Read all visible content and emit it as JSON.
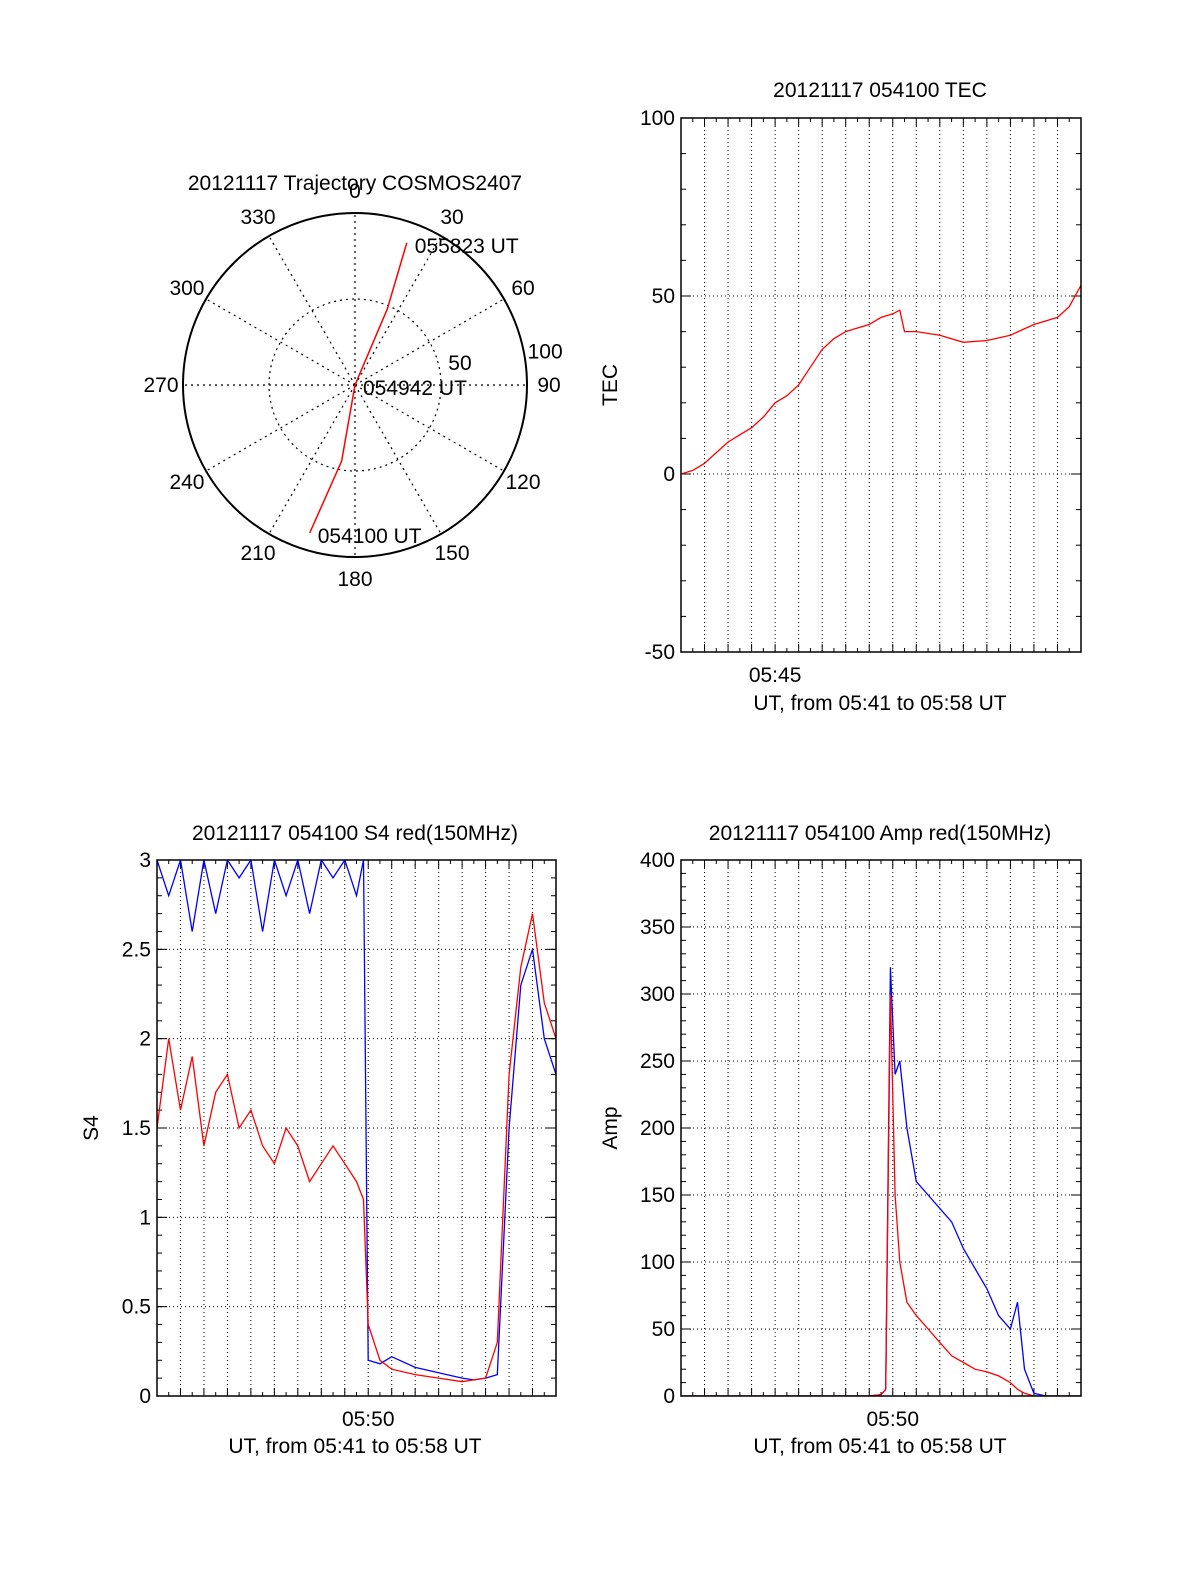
{
  "colors": {
    "red": "#ff0000",
    "blue": "#0000ff",
    "axis": "#000000",
    "grid": "#000000"
  },
  "chart_data": [
    {
      "id": "trajectory",
      "type": "polar",
      "title": "20121117 Trajectory COSMOS2407",
      "angle_labels": [
        "0",
        "30",
        "60",
        "90",
        "120",
        "150",
        "180",
        "210",
        "240",
        "270",
        "300",
        "330"
      ],
      "radial_labels": [
        "50",
        "100"
      ],
      "radial_ticks": [
        50,
        100
      ],
      "r_max": 100,
      "grid": true,
      "series": [
        {
          "color": "red",
          "points": [
            {
              "az": 197,
              "r": 90
            },
            {
              "az": 190,
              "r": 45
            },
            {
              "az": 0,
              "r": 0
            },
            {
              "az": 23,
              "r": 48
            },
            {
              "az": 20,
              "r": 88
            }
          ]
        }
      ],
      "annotations": [
        {
          "text": "055823 UT",
          "az": 20,
          "r": 88
        },
        {
          "text": "054942 UT",
          "az": 0,
          "r": 0
        },
        {
          "text": "054100 UT",
          "az": 197,
          "r": 90
        }
      ]
    },
    {
      "id": "tec",
      "type": "line",
      "title": "20121117 054100 TEC",
      "xlabel": "UT, from 05:41 to 05:58 UT",
      "ylabel": "TEC",
      "xlim": [
        0,
        17
      ],
      "ylim": [
        -50,
        100
      ],
      "yticks": [
        -50,
        0,
        50,
        100
      ],
      "xtick_labels": [
        {
          "value": 4,
          "label": "05:45"
        }
      ],
      "grid": true,
      "series": [
        {
          "color": "red",
          "x": [
            0,
            0.5,
            1,
            1.5,
            2,
            2.5,
            3,
            3.5,
            4,
            4.5,
            5,
            5.5,
            6,
            6.5,
            7,
            7.5,
            8,
            8.5,
            9,
            9.3,
            9.5,
            10,
            11,
            12,
            13,
            14,
            15,
            16,
            16.5,
            17
          ],
          "y": [
            0,
            1,
            3,
            6,
            9,
            11,
            13,
            16,
            20,
            22,
            25,
            30,
            35,
            38,
            40,
            41,
            42,
            44,
            45,
            46,
            40,
            40,
            39,
            37,
            37.5,
            39,
            42,
            44,
            47,
            53
          ]
        }
      ]
    },
    {
      "id": "s4",
      "type": "line",
      "title": "20121117 054100 S4 red(150MHz)",
      "xlabel": "UT, from 05:41 to 05:58 UT",
      "ylabel": "S4",
      "xlim": [
        0,
        17
      ],
      "ylim": [
        0,
        3
      ],
      "yticks": [
        0,
        0.5,
        1,
        1.5,
        2,
        2.5,
        3
      ],
      "ytick_labels": [
        "0",
        "0.5",
        "1",
        "1.5",
        "2",
        "2.5",
        "3"
      ],
      "xtick_labels": [
        {
          "value": 9,
          "label": "05:50"
        }
      ],
      "grid": true,
      "series": [
        {
          "color": "blue",
          "x": [
            0,
            0.5,
            1,
            1.5,
            2,
            2.5,
            3,
            3.5,
            4,
            4.5,
            5,
            5.5,
            6,
            6.5,
            7,
            7.5,
            8,
            8.5,
            8.8,
            9,
            9.5,
            10,
            11,
            12,
            13,
            13.5,
            14,
            14.5,
            15,
            15.5,
            16,
            16.5,
            17
          ],
          "y": [
            3,
            2.8,
            3,
            2.6,
            3,
            2.7,
            3,
            2.9,
            3,
            2.6,
            3,
            2.8,
            3,
            2.7,
            3,
            2.9,
            3,
            2.8,
            3,
            0.2,
            0.18,
            0.22,
            0.16,
            0.13,
            0.1,
            0.09,
            0.1,
            0.12,
            1.5,
            2.3,
            2.5,
            2.0,
            1.8
          ]
        },
        {
          "color": "red",
          "x": [
            0,
            0.5,
            1,
            1.5,
            2,
            2.5,
            3,
            3.5,
            4,
            4.5,
            5,
            5.5,
            6,
            6.5,
            7,
            7.5,
            8,
            8.5,
            8.8,
            9,
            9.5,
            10,
            11,
            12,
            13,
            13.5,
            14,
            14.5,
            15,
            15.5,
            16,
            16.5,
            17
          ],
          "y": [
            1.5,
            2.0,
            1.6,
            1.9,
            1.4,
            1.7,
            1.8,
            1.5,
            1.6,
            1.4,
            1.3,
            1.5,
            1.4,
            1.2,
            1.3,
            1.4,
            1.3,
            1.2,
            1.1,
            0.4,
            0.2,
            0.15,
            0.12,
            0.1,
            0.08,
            0.09,
            0.1,
            0.3,
            1.8,
            2.4,
            2.7,
            2.2,
            2.0
          ]
        }
      ]
    },
    {
      "id": "amp",
      "type": "line",
      "title": "20121117 054100 Amp red(150MHz)",
      "xlabel": "UT, from 05:41 to 05:58 UT",
      "ylabel": "Amp",
      "xlim": [
        0,
        17
      ],
      "ylim": [
        0,
        400
      ],
      "yticks": [
        0,
        50,
        100,
        150,
        200,
        250,
        300,
        350,
        400
      ],
      "xtick_labels": [
        {
          "value": 9,
          "label": "05:50"
        }
      ],
      "grid": true,
      "series": [
        {
          "color": "blue",
          "x": [
            0,
            2,
            4,
            6,
            8,
            8.5,
            8.7,
            8.9,
            9.1,
            9.3,
            9.6,
            10,
            10.5,
            11,
            11.5,
            12,
            12.5,
            13,
            13.5,
            14,
            14.3,
            14.6,
            15,
            15.5,
            17
          ],
          "y": [
            0,
            0,
            0,
            0,
            0,
            1,
            5,
            320,
            240,
            250,
            200,
            160,
            150,
            140,
            130,
            110,
            95,
            80,
            60,
            50,
            70,
            20,
            2,
            0,
            0
          ]
        },
        {
          "color": "red",
          "x": [
            0,
            2,
            4,
            6,
            8,
            8.5,
            8.7,
            8.9,
            9.1,
            9.3,
            9.6,
            10,
            10.5,
            11,
            11.5,
            12,
            12.5,
            13,
            13.5,
            14,
            14.3,
            14.6,
            15,
            15.5,
            17
          ],
          "y": [
            0,
            0,
            0,
            0,
            0,
            1,
            5,
            300,
            150,
            100,
            70,
            60,
            50,
            40,
            30,
            25,
            20,
            18,
            15,
            10,
            5,
            2,
            0,
            0,
            0
          ]
        }
      ]
    }
  ]
}
